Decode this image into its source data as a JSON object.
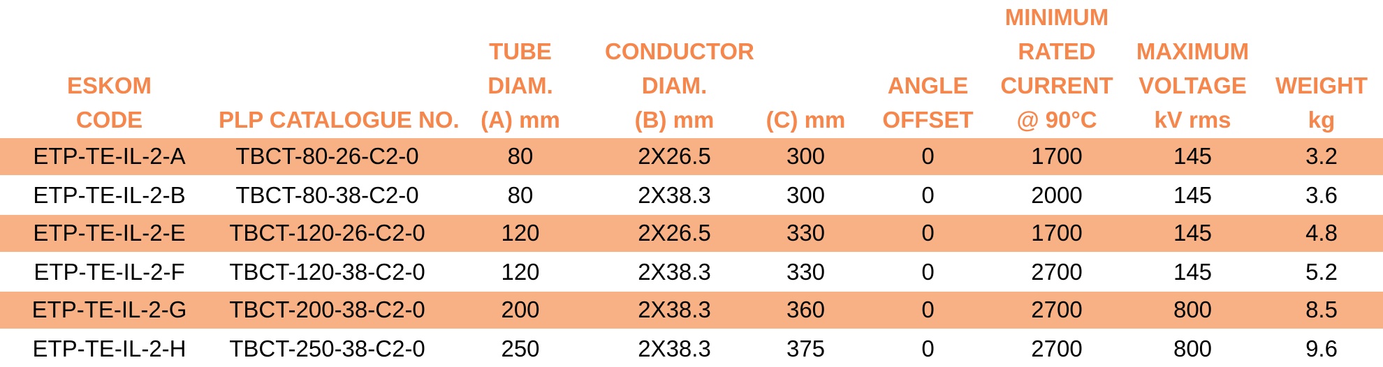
{
  "colors": {
    "header_text": "#F5864C",
    "row_stripe": "#F8B184",
    "row_plain": "#FFFFFF",
    "data_text": "#000000"
  },
  "table": {
    "columns": [
      {
        "id": "eskom-code",
        "lines": [
          "ESKOM",
          "CODE"
        ]
      },
      {
        "id": "plp-catalogue-no",
        "lines": [
          "PLP CATALOGUE NO."
        ]
      },
      {
        "id": "tube-diam-a-mm",
        "lines": [
          "TUBE",
          "DIAM.",
          "(A) mm"
        ]
      },
      {
        "id": "conductor-diam-b-mm",
        "lines": [
          "CONDUCTOR",
          "DIAM.",
          "(B) mm"
        ]
      },
      {
        "id": "c-mm",
        "lines": [
          "(C) mm"
        ]
      },
      {
        "id": "angle-offset",
        "lines": [
          "ANGLE",
          "OFFSET"
        ]
      },
      {
        "id": "min-rated-current-90c",
        "lines": [
          "MINIMUM",
          "RATED",
          "CURRENT",
          "@ 90°C"
        ]
      },
      {
        "id": "max-voltage-kv-rms",
        "lines": [
          "MAXIMUM",
          "VOLTAGE",
          "kV rms"
        ]
      },
      {
        "id": "weight-kg",
        "lines": [
          "WEIGHT",
          "kg"
        ]
      }
    ],
    "rows": [
      {
        "striped": true,
        "cells": [
          "ETP-TE-IL-2-A",
          "TBCT-80-26-C2-0",
          "80",
          "2X26.5",
          "300",
          "0",
          "1700",
          "145",
          "3.2"
        ]
      },
      {
        "striped": false,
        "cells": [
          "ETP-TE-IL-2-B",
          "TBCT-80-38-C2-0",
          "80",
          "2X38.3",
          "300",
          "0",
          "2000",
          "145",
          "3.6"
        ]
      },
      {
        "striped": true,
        "cells": [
          "ETP-TE-IL-2-E",
          "TBCT-120-26-C2-0",
          "120",
          "2X26.5",
          "330",
          "0",
          "1700",
          "145",
          "4.8"
        ]
      },
      {
        "striped": false,
        "cells": [
          "ETP-TE-IL-2-F",
          "TBCT-120-38-C2-0",
          "120",
          "2X38.3",
          "330",
          "0",
          "2700",
          "145",
          "5.2"
        ]
      },
      {
        "striped": true,
        "cells": [
          "ETP-TE-IL-2-G",
          "TBCT-200-38-C2-0",
          "200",
          "2X38.3",
          "360",
          "0",
          "2700",
          "800",
          "8.5"
        ]
      },
      {
        "striped": false,
        "cells": [
          "ETP-TE-IL-2-H",
          "TBCT-250-38-C2-0",
          "250",
          "2X38.3",
          "375",
          "0",
          "2700",
          "800",
          "9.6"
        ]
      }
    ]
  }
}
